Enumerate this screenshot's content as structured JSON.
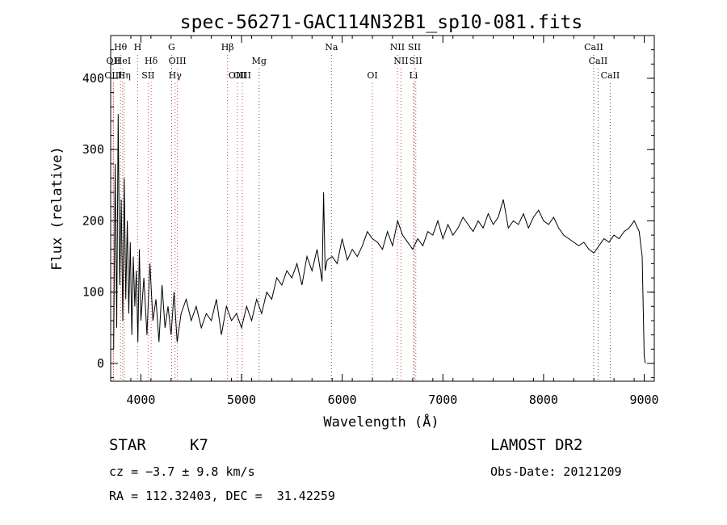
{
  "chart_data": {
    "type": "line",
    "title": "spec-56271-GAC114N32B1_sp10-081.fits",
    "xlabel": "Wavelength (Å)",
    "ylabel": "Flux (relative)",
    "xlim": [
      3700,
      9100
    ],
    "ylim": [
      -25,
      460
    ],
    "x_ticks": [
      4000,
      5000,
      6000,
      7000,
      8000,
      9000
    ],
    "y_ticks": [
      0,
      100,
      200,
      300,
      400
    ],
    "x_tick_labels": [
      "4000",
      "5000",
      "6000",
      "7000",
      "8000",
      "9000"
    ],
    "y_tick_labels": [
      "0",
      "100",
      "200",
      "300",
      "400"
    ],
    "grid": false,
    "series": [
      {
        "x": [
          3730,
          3745,
          3760,
          3775,
          3790,
          3805,
          3820,
          3835,
          3850,
          3865,
          3880,
          3895,
          3910,
          3925,
          3940,
          3955,
          3970,
          3985,
          4000,
          4030,
          4060,
          4090,
          4120,
          4150,
          4180,
          4210,
          4240,
          4270,
          4300,
          4330,
          4360,
          4400,
          4450,
          4500,
          4550,
          4600,
          4650,
          4700,
          4750,
          4800,
          4850,
          4900,
          4950,
          5000,
          5050,
          5100,
          5150,
          5200,
          5250,
          5300,
          5350,
          5400,
          5450,
          5500,
          5550,
          5600,
          5650,
          5700,
          5750,
          5800,
          5815,
          5830,
          5850,
          5900,
          5950,
          6000,
          6050,
          6100,
          6150,
          6200,
          6250,
          6300,
          6350,
          6400,
          6450,
          6500,
          6550,
          6600,
          6650,
          6700,
          6750,
          6800,
          6850,
          6900,
          6950,
          7000,
          7050,
          7100,
          7150,
          7200,
          7250,
          7300,
          7350,
          7400,
          7450,
          7500,
          7550,
          7600,
          7650,
          7700,
          7750,
          7800,
          7850,
          7900,
          7950,
          8000,
          8050,
          8100,
          8150,
          8200,
          8250,
          8300,
          8350,
          8400,
          8450,
          8500,
          8550,
          8600,
          8650,
          8700,
          8750,
          8800,
          8850,
          8900,
          8950,
          8980,
          9000,
          9010
        ],
        "y": [
          20,
          280,
          50,
          350,
          110,
          230,
          60,
          260,
          90,
          200,
          70,
          170,
          40,
          150,
          80,
          130,
          30,
          160,
          60,
          120,
          40,
          140,
          60,
          90,
          30,
          110,
          50,
          80,
          40,
          100,
          30,
          70,
          90,
          60,
          80,
          50,
          70,
          60,
          90,
          40,
          80,
          60,
          70,
          50,
          80,
          60,
          90,
          70,
          100,
          90,
          120,
          110,
          130,
          120,
          140,
          110,
          150,
          130,
          160,
          115,
          240,
          130,
          145,
          150,
          140,
          175,
          145,
          160,
          150,
          165,
          185,
          175,
          170,
          160,
          185,
          165,
          200,
          180,
          170,
          160,
          175,
          165,
          185,
          180,
          200,
          175,
          195,
          180,
          190,
          205,
          195,
          185,
          200,
          190,
          210,
          195,
          205,
          230,
          190,
          200,
          195,
          210,
          190,
          205,
          215,
          200,
          195,
          205,
          190,
          180,
          175,
          170,
          165,
          170,
          160,
          155,
          165,
          175,
          170,
          180,
          175,
          185,
          190,
          200,
          185,
          150,
          10,
          0
        ]
      }
    ],
    "line_markers": [
      {
        "label": "Hθ",
        "x": 3798
      },
      {
        "label": "OII",
        "x": 3727
      },
      {
        "label": "HeI",
        "x": 3820
      },
      {
        "label": "OIII",
        "x": 3727
      },
      {
        "label": "Hη",
        "x": 3835
      },
      {
        "label": "H",
        "x": 3968
      },
      {
        "label": "Hδ",
        "x": 4102
      },
      {
        "label": "SII",
        "x": 4072
      },
      {
        "label": "G",
        "x": 4305
      },
      {
        "label": "OIII",
        "x": 4363
      },
      {
        "label": "Hγ",
        "x": 4340
      },
      {
        "label": "Hβ",
        "x": 4861
      },
      {
        "label": "OIII",
        "x": 4959
      },
      {
        "label": "OIII",
        "x": 5007
      },
      {
        "label": "Mg",
        "x": 5175
      },
      {
        "label": "Na",
        "x": 5893
      },
      {
        "label": "OI",
        "x": 6300
      },
      {
        "label": "NII",
        "x": 6548
      },
      {
        "label": "NII",
        "x": 6584
      },
      {
        "label": "SII",
        "x": 6717
      },
      {
        "label": "SII",
        "x": 6731
      },
      {
        "label": "Li",
        "x": 6708
      },
      {
        "label": "CaII",
        "x": 8498
      },
      {
        "label": "CaII",
        "x": 8542
      },
      {
        "label": "CaII",
        "x": 8662
      }
    ]
  },
  "footer": {
    "object_class": "STAR",
    "subclass": "K7",
    "survey": "LAMOST DR2",
    "redshift": "cz = −3.7 ± 9.8 km/s",
    "obs_date": "Obs-Date: 20121209",
    "coords": "RA = 112.32403, DEC =  31.42259"
  }
}
